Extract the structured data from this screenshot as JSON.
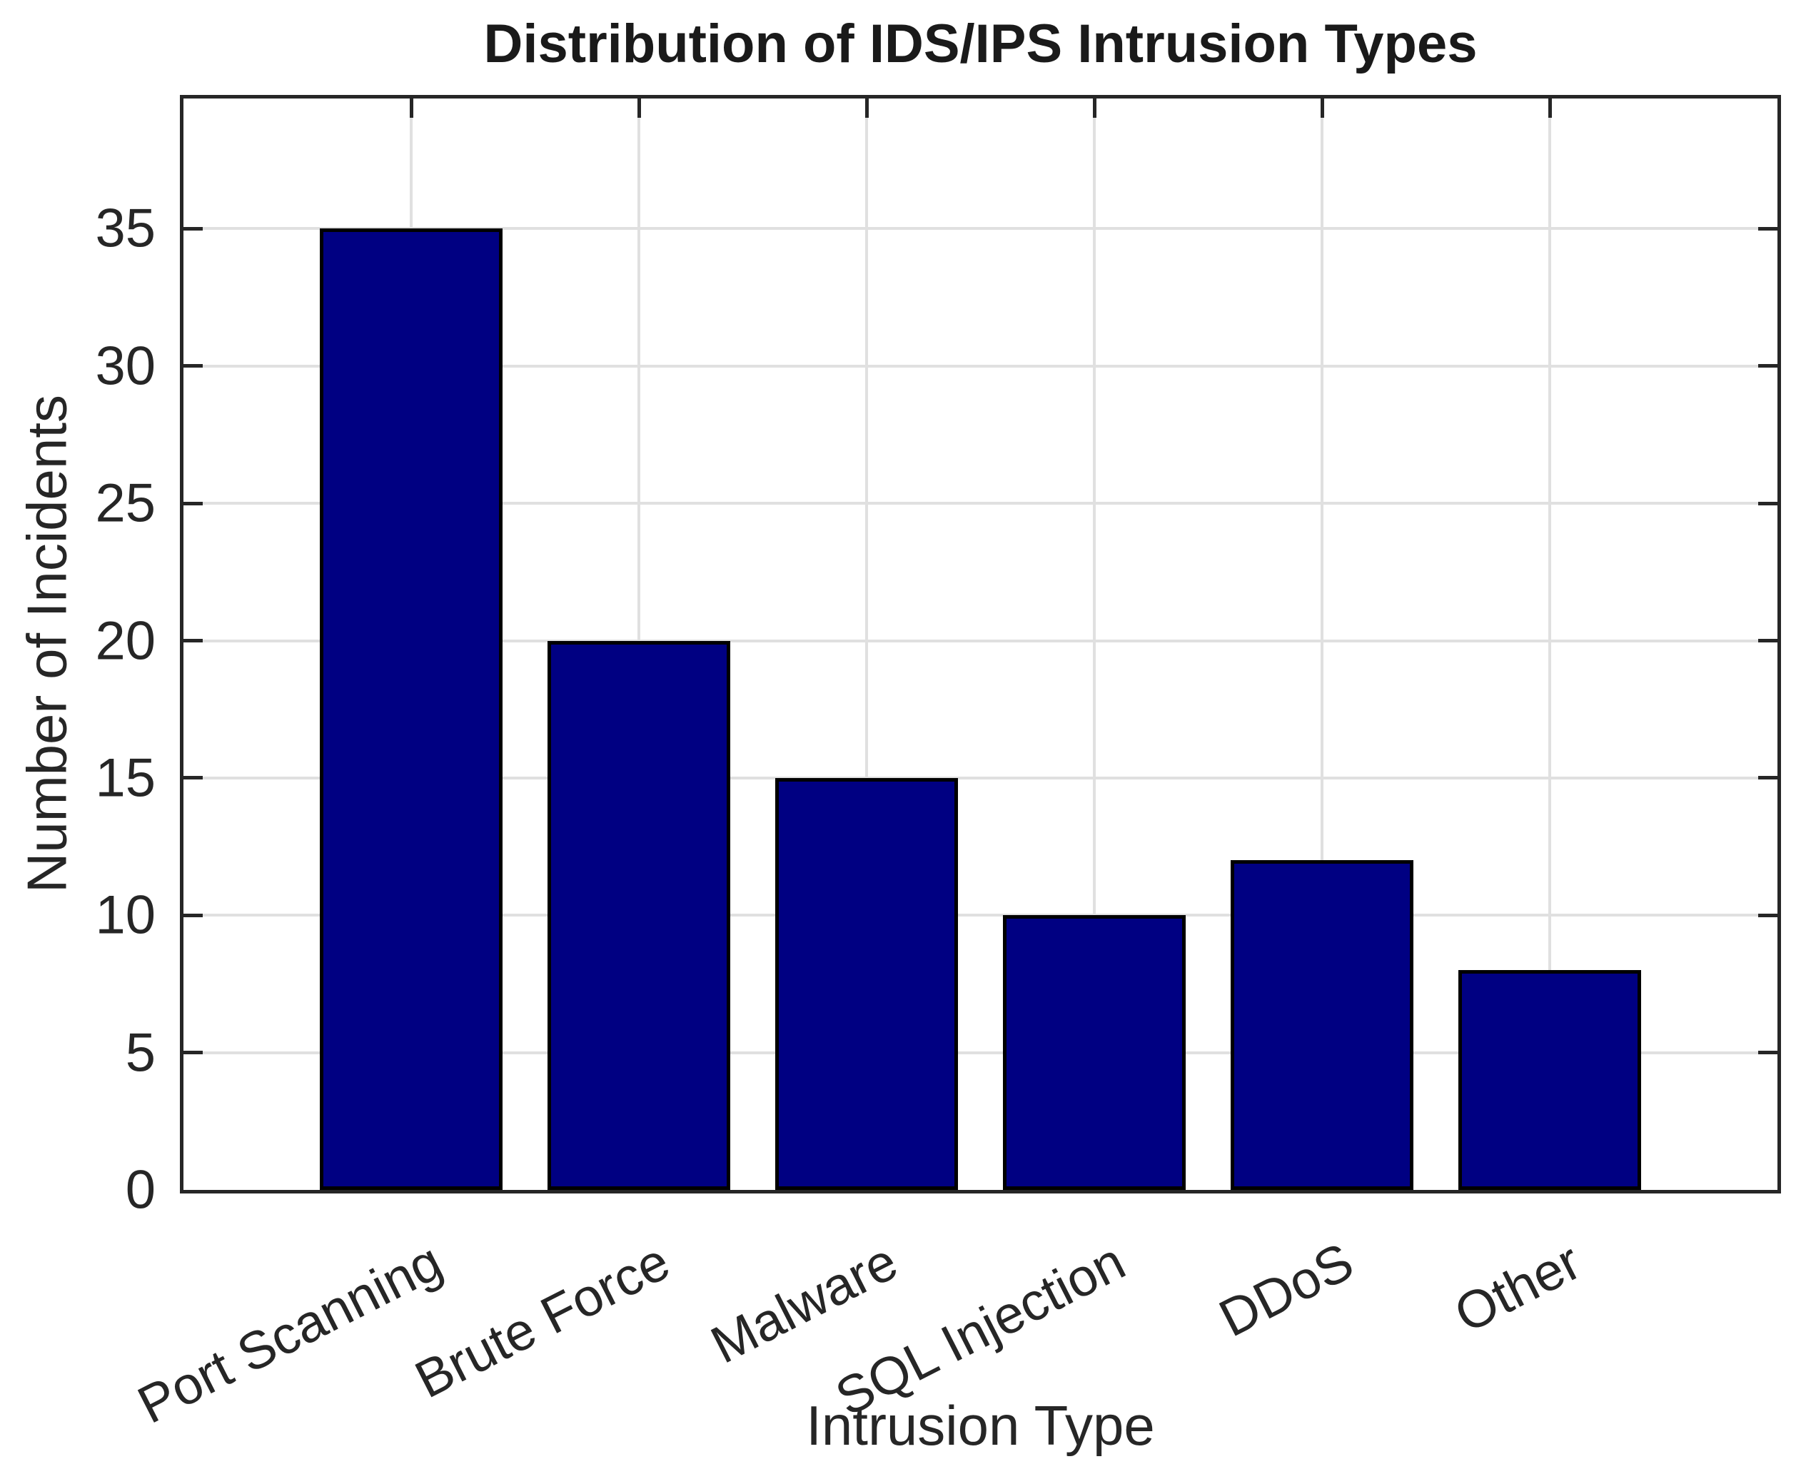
{
  "chart_data": {
    "type": "bar",
    "title": "Distribution of IDS/IPS Intrusion Types",
    "xlabel": "Intrusion Type",
    "ylabel": "Number of Incidents",
    "categories": [
      "Port Scanning",
      "Brute Force",
      "Malware",
      "SQL Injection",
      "DDoS",
      "Other"
    ],
    "values": [
      35,
      20,
      15,
      10,
      12,
      8
    ],
    "yticks": [
      0,
      5,
      10,
      15,
      20,
      25,
      30,
      35
    ],
    "ylim": [
      0,
      40
    ],
    "grid": true,
    "legend": false,
    "x_tick_label_rotation_deg": 27,
    "bar_width_fraction": 0.8,
    "colors": {
      "bar_fill": "#000082",
      "bar_edge": "#000000",
      "grid": "#e0e0e0",
      "axis": "#262626",
      "text": "#262626",
      "title": "#1a1a1a",
      "background": "#ffffff"
    }
  }
}
